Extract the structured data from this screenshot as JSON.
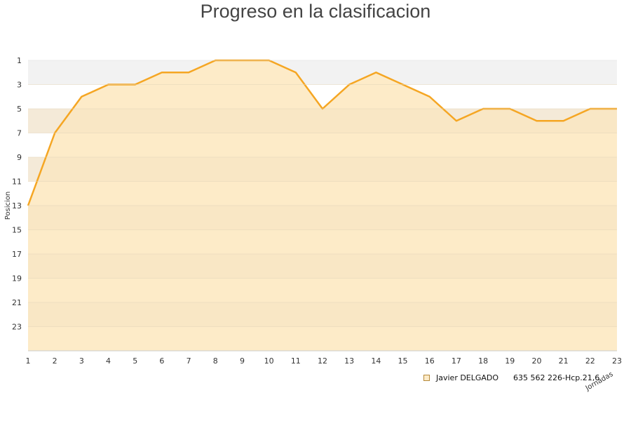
{
  "chart_data": {
    "type": "area",
    "title": "Progreso en la clasificacion",
    "ylabel": "Posicion",
    "xlabel": "Jornadas",
    "x": [
      1,
      2,
      3,
      4,
      5,
      6,
      7,
      8,
      9,
      10,
      11,
      12,
      13,
      14,
      15,
      16,
      17,
      18,
      19,
      20,
      21,
      22,
      23
    ],
    "y_ticks": [
      1,
      3,
      5,
      7,
      9,
      11,
      13,
      15,
      17,
      19,
      21,
      23
    ],
    "ylim": [
      25,
      1
    ],
    "y_inverted": true,
    "series": [
      {
        "name": "Javier DELGADO      635 562 226-Hcp.21,6",
        "values": [
          13,
          7,
          4,
          3,
          3,
          2,
          2,
          1,
          1,
          1,
          2,
          5,
          3,
          2,
          3,
          4,
          6,
          5,
          5,
          6,
          6,
          5,
          5
        ]
      }
    ],
    "legend_position": "bottom-right",
    "colors": {
      "line": "#f5a623",
      "fill": "#fdebc8",
      "band_light": "#fdedcc",
      "band_dark": "#f5e4c3",
      "top_band": "#f2f2f2",
      "grid": "#e2d4b8"
    }
  }
}
